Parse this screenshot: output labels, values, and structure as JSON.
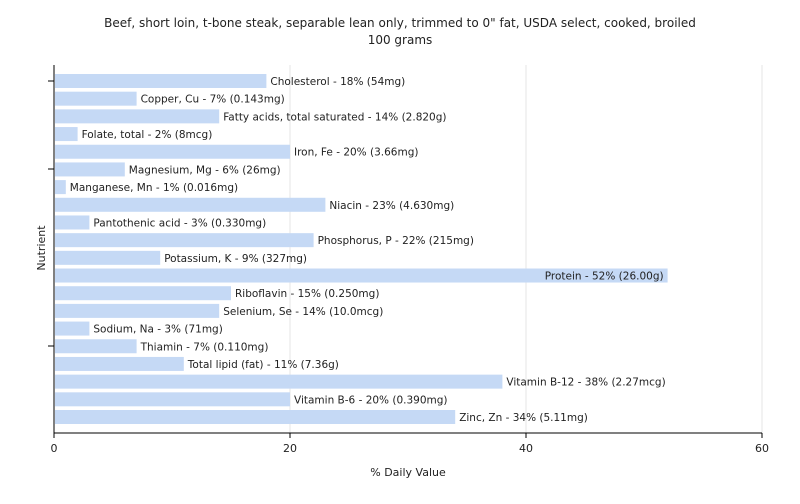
{
  "chart_data": {
    "type": "bar",
    "orientation": "horizontal",
    "title": "Beef, short loin, t-bone steak, separable lean only, trimmed to 0\" fat, USDA select, cooked, broiled",
    "subtitle": "100 grams",
    "xlabel": "% Daily Value",
    "ylabel": "Nutrient",
    "xlim": [
      0,
      60
    ],
    "xticks": [
      0,
      20,
      40,
      60
    ],
    "grid": true,
    "colors": {
      "bar": "#c5d9f5",
      "grid": "#e6e6e6",
      "axis": "#000000"
    },
    "categories": [
      "Cholesterol",
      "Copper, Cu",
      "Fatty acids, total saturated",
      "Folate, total",
      "Iron, Fe",
      "Magnesium, Mg",
      "Manganese, Mn",
      "Niacin",
      "Pantothenic acid",
      "Phosphorus, P",
      "Potassium, K",
      "Protein",
      "Riboflavin",
      "Selenium, Se",
      "Sodium, Na",
      "Thiamin",
      "Total lipid (fat)",
      "Vitamin B-12",
      "Vitamin B-6",
      "Zinc, Zn"
    ],
    "values": [
      18,
      7,
      14,
      2,
      20,
      6,
      1,
      23,
      3,
      22,
      9,
      52,
      15,
      14,
      3,
      7,
      11,
      38,
      20,
      34
    ],
    "labels": [
      "Cholesterol - 18% (54mg)",
      "Copper, Cu - 7% (0.143mg)",
      "Fatty acids, total saturated - 14% (2.820g)",
      "Folate, total - 2% (8mcg)",
      "Iron, Fe - 20% (3.66mg)",
      "Magnesium, Mg - 6% (26mg)",
      "Manganese, Mn - 1% (0.016mg)",
      "Niacin - 23% (4.630mg)",
      "Pantothenic acid - 3% (0.330mg)",
      "Phosphorus, P - 22% (215mg)",
      "Potassium, K - 9% (327mg)",
      "Protein - 52% (26.00g)",
      "Riboflavin - 15% (0.250mg)",
      "Selenium, Se - 14% (10.0mcg)",
      "Sodium, Na - 3% (71mg)",
      "Thiamin - 7% (0.110mg)",
      "Total lipid (fat) - 11% (7.36g)",
      "Vitamin B-12 - 38% (2.27mcg)",
      "Vitamin B-6 - 20% (0.390mg)",
      "Zinc, Zn - 34% (5.11mg)"
    ],
    "inside_label_indices": [
      11
    ]
  }
}
